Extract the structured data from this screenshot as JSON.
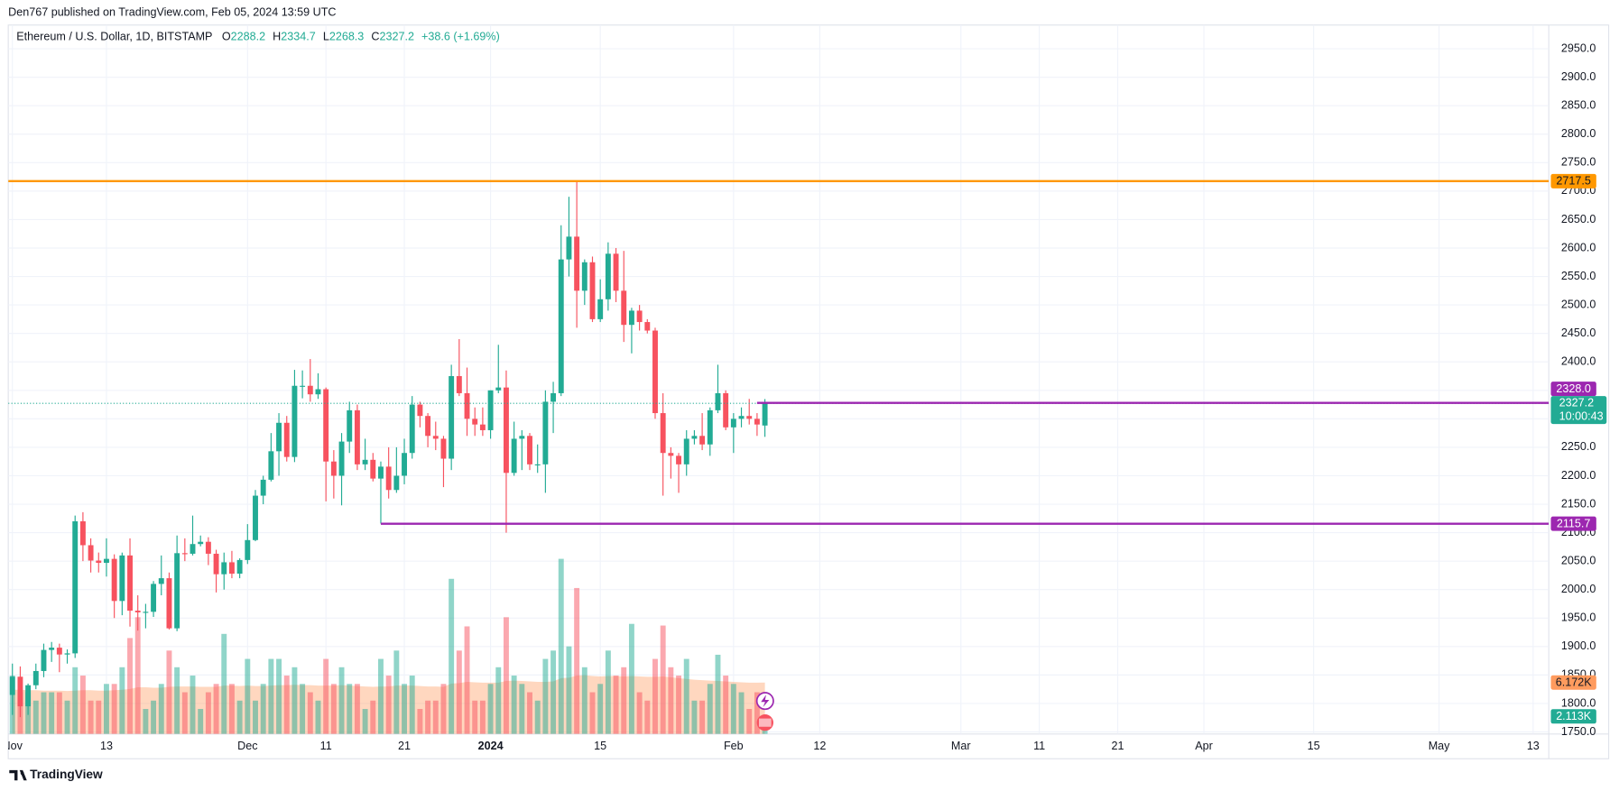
{
  "header": "Den767 published on TradingView.com, Feb 05, 2024 13:59 UTC",
  "footer": "TradingView",
  "chart_data": {
    "type": "candlestick",
    "title": "Ethereum / U.S. Dollar, 1D, BITSTAMP",
    "legend_letters": [
      "O",
      "H",
      "L",
      "C"
    ],
    "change": "+38.6 (+1.69%)",
    "countdown": "10:00:43",
    "up_color": "#22ab94",
    "down_color": "#f7525f",
    "x": [
      "2023-11-01",
      "2023-11-02",
      "2023-11-03",
      "2023-11-04",
      "2023-11-05",
      "2023-11-06",
      "2023-11-07",
      "2023-11-08",
      "2023-11-09",
      "2023-11-10",
      "2023-11-11",
      "2023-11-12",
      "2023-11-13",
      "2023-11-14",
      "2023-11-15",
      "2023-11-16",
      "2023-11-17",
      "2023-11-18",
      "2023-11-19",
      "2023-11-20",
      "2023-11-21",
      "2023-11-22",
      "2023-11-23",
      "2023-11-24",
      "2023-11-25",
      "2023-11-26",
      "2023-11-27",
      "2023-11-28",
      "2023-11-29",
      "2023-11-30",
      "2023-12-01",
      "2023-12-02",
      "2023-12-03",
      "2023-12-04",
      "2023-12-05",
      "2023-12-06",
      "2023-12-07",
      "2023-12-08",
      "2023-12-09",
      "2023-12-10",
      "2023-12-11",
      "2023-12-12",
      "2023-12-13",
      "2023-12-14",
      "2023-12-15",
      "2023-12-16",
      "2023-12-17",
      "2023-12-18",
      "2023-12-19",
      "2023-12-20",
      "2023-12-21",
      "2023-12-22",
      "2023-12-23",
      "2023-12-24",
      "2023-12-25",
      "2023-12-26",
      "2023-12-27",
      "2023-12-28",
      "2023-12-29",
      "2023-12-30",
      "2023-12-31",
      "2024-01-01",
      "2024-01-02",
      "2024-01-03",
      "2024-01-04",
      "2024-01-05",
      "2024-01-06",
      "2024-01-07",
      "2024-01-08",
      "2024-01-09",
      "2024-01-10",
      "2024-01-11",
      "2024-01-12",
      "2024-01-13",
      "2024-01-14",
      "2024-01-15",
      "2024-01-16",
      "2024-01-17",
      "2024-01-18",
      "2024-01-19",
      "2024-01-20",
      "2024-01-21",
      "2024-01-22",
      "2024-01-23",
      "2024-01-24",
      "2024-01-25",
      "2024-01-26",
      "2024-01-27",
      "2024-01-28",
      "2024-01-29",
      "2024-01-30",
      "2024-01-31",
      "2024-02-01",
      "2024-02-02",
      "2024-02-03",
      "2024-02-04",
      "2024-02-05"
    ],
    "open": [
      1815,
      1847,
      1795,
      1832,
      1857,
      1894,
      1898,
      1886,
      1888,
      2120,
      2078,
      2051,
      2047,
      2054,
      1980,
      2060,
      1963,
      1960,
      1961,
      2010,
      2020,
      1932,
      2064,
      2063,
      2080,
      2084,
      2063,
      2027,
      2048,
      2028,
      2052,
      2087,
      2165,
      2193,
      2243,
      2293,
      2233,
      2358,
      2358,
      2343,
      2352,
      2225,
      2200,
      2260,
      2315,
      2220,
      2228,
      2195,
      2216,
      2175,
      2200,
      2240,
      2325,
      2305,
      2270,
      2265,
      2230,
      2375,
      2345,
      2300,
      2290,
      2280,
      2350,
      2355,
      2205,
      2265,
      2270,
      2220,
      2220,
      2330,
      2345,
      2580,
      2620,
      2525,
      2575,
      2475,
      2510,
      2590,
      2525,
      2465,
      2490,
      2470,
      2455,
      2310,
      2240,
      2235,
      2220,
      2265,
      2270,
      2255,
      2315,
      2345,
      2285,
      2300,
      2305,
      2300,
      2288.2
    ],
    "high": [
      1870,
      1865,
      1835,
      1870,
      1905,
      1908,
      1905,
      1895,
      2130,
      2136,
      2090,
      2065,
      2090,
      2062,
      2065,
      2090,
      1990,
      1975,
      2015,
      2060,
      2030,
      2095,
      2090,
      2130,
      2095,
      2092,
      2070,
      2065,
      2068,
      2055,
      2115,
      2175,
      2200,
      2275,
      2310,
      2305,
      2386,
      2385,
      2405,
      2380,
      2355,
      2245,
      2275,
      2330,
      2325,
      2265,
      2240,
      2225,
      2250,
      2250,
      2265,
      2340,
      2330,
      2310,
      2295,
      2270,
      2395,
      2440,
      2390,
      2320,
      2320,
      2350,
      2430,
      2385,
      2295,
      2280,
      2275,
      2255,
      2350,
      2365,
      2640,
      2690,
      2717.5,
      2580,
      2585,
      2545,
      2610,
      2600,
      2595,
      2495,
      2500,
      2475,
      2460,
      2345,
      2250,
      2240,
      2280,
      2280,
      2310,
      2320,
      2395,
      2350,
      2310,
      2320,
      2335,
      2310,
      2334.7
    ],
    "low": [
      1780,
      1776,
      1780,
      1825,
      1846,
      1873,
      1855,
      1870,
      1880,
      2050,
      2030,
      2030,
      2023,
      1950,
      1955,
      1935,
      1928,
      1932,
      1952,
      1990,
      1930,
      1927,
      2050,
      2060,
      2076,
      2043,
      1995,
      2000,
      2020,
      2020,
      2045,
      2085,
      2150,
      2190,
      2200,
      2225,
      2224,
      2336,
      2330,
      2335,
      2155,
      2160,
      2148,
      2240,
      2210,
      2210,
      2190,
      2116,
      2160,
      2170,
      2185,
      2230,
      2285,
      2250,
      2245,
      2180,
      2210,
      2340,
      2270,
      2270,
      2270,
      2265,
      2345,
      2100,
      2200,
      2210,
      2210,
      2205,
      2170,
      2275,
      2340,
      2550,
      2460,
      2500,
      2470,
      2470,
      2490,
      2505,
      2435,
      2415,
      2455,
      2450,
      2300,
      2165,
      2195,
      2170,
      2200,
      2255,
      2245,
      2235,
      2310,
      2280,
      2240,
      2285,
      2290,
      2270,
      2268.3
    ],
    "close": [
      1847,
      1795,
      1832,
      1857,
      1894,
      1898,
      1886,
      1888,
      2120,
      2078,
      2051,
      2047,
      2054,
      1980,
      2060,
      1963,
      1960,
      1961,
      2010,
      2020,
      1932,
      2064,
      2063,
      2080,
      2084,
      2063,
      2027,
      2048,
      2028,
      2052,
      2087,
      2165,
      2193,
      2243,
      2293,
      2233,
      2358,
      2358,
      2343,
      2352,
      2225,
      2200,
      2260,
      2315,
      2220,
      2228,
      2195,
      2216,
      2175,
      2200,
      2240,
      2325,
      2305,
      2270,
      2265,
      2230,
      2375,
      2345,
      2300,
      2290,
      2280,
      2350,
      2355,
      2205,
      2265,
      2270,
      2220,
      2220,
      2330,
      2345,
      2580,
      2620,
      2525,
      2575,
      2475,
      2510,
      2590,
      2525,
      2465,
      2490,
      2470,
      2455,
      2310,
      2240,
      2235,
      2220,
      2265,
      2270,
      2255,
      2315,
      2345,
      2285,
      2300,
      2305,
      2300,
      2290,
      2327.2
    ],
    "volume": {
      "ylim": [
        0,
        85000
      ],
      "values": [
        7000,
        5000,
        5000,
        4000,
        5000,
        5000,
        5000,
        4000,
        8000,
        7000,
        4000,
        4000,
        6000,
        6000,
        8000,
        11500,
        14000,
        3000,
        4000,
        6000,
        10000,
        8000,
        5000,
        7000,
        3000,
        5000,
        6000,
        12000,
        6000,
        4000,
        9000,
        4000,
        6000,
        9000,
        9000,
        7000,
        8000,
        6000,
        5000,
        4000,
        9000,
        6000,
        8000,
        6000,
        6000,
        3000,
        4000,
        9000,
        7000,
        10000,
        6000,
        7000,
        3000,
        4000,
        4000,
        6000,
        18600,
        10000,
        12900,
        4000,
        4000,
        6000,
        8000,
        14000,
        7000,
        6000,
        5000,
        4000,
        9000,
        10000,
        21000,
        10500,
        17500,
        8000,
        5000,
        6000,
        10000,
        7000,
        8000,
        13200,
        5000,
        4000,
        9000,
        13000,
        8000,
        7000,
        9000,
        4000,
        4000,
        6000,
        9500,
        7000,
        6000,
        5000,
        3000,
        5000,
        2113
      ],
      "last_label": "2.113K"
    },
    "volume_ma": {
      "color": "#ff9b5e",
      "values": [
        5300,
        5300,
        5250,
        5250,
        5200,
        5200,
        5200,
        5150,
        5200,
        5250,
        5250,
        5200,
        5200,
        5250,
        5300,
        5400,
        5600,
        5600,
        5550,
        5550,
        5650,
        5700,
        5700,
        5700,
        5650,
        5650,
        5650,
        5800,
        5800,
        5750,
        5800,
        5750,
        5750,
        5800,
        5850,
        5850,
        5900,
        5850,
        5850,
        5800,
        5800,
        5800,
        5850,
        5800,
        5750,
        5700,
        5650,
        5700,
        5700,
        5800,
        5800,
        5800,
        5750,
        5700,
        5700,
        5650,
        6050,
        6100,
        6250,
        6200,
        6150,
        6150,
        6150,
        6350,
        6400,
        6350,
        6300,
        6250,
        6250,
        6300,
        6700,
        6750,
        7000,
        7050,
        6950,
        6900,
        6950,
        6950,
        6900,
        6950,
        6900,
        6850,
        6850,
        6900,
        6800,
        6700,
        6600,
        6500,
        6450,
        6400,
        6350,
        6300,
        6250,
        6200,
        6150,
        6150,
        6172
      ],
      "last_label": "6.172K"
    },
    "hlines": [
      {
        "value": 2717.5,
        "color": "#ff9800",
        "text_color": "#131722"
      },
      {
        "value": 2328,
        "label": "2328.0",
        "color": "#9c27b0",
        "text_color": "#ffffff",
        "from": "2024-02-04"
      },
      {
        "value": 2115.7,
        "color": "#9c27b0",
        "text_color": "#ffffff",
        "from": "2023-12-18"
      }
    ],
    "xlim": [
      "2023-11-01",
      "2024-05-15"
    ],
    "xticks": [
      {
        "value": "2023-11-01",
        "label": "Nov"
      },
      {
        "value": "2023-11-13",
        "label": "13"
      },
      {
        "value": "2023-12-01",
        "label": "Dec"
      },
      {
        "value": "2023-12-11",
        "label": "11"
      },
      {
        "value": "2023-12-21",
        "label": "21"
      },
      {
        "value": "2024-01-01",
        "label": "2024"
      },
      {
        "value": "2024-01-15",
        "label": "15"
      },
      {
        "value": "2024-02-01",
        "label": "Feb"
      },
      {
        "value": "2024-02-12",
        "label": "12"
      },
      {
        "value": "2024-03-01",
        "label": "Mar"
      },
      {
        "value": "2024-03-11",
        "label": "11"
      },
      {
        "value": "2024-03-21",
        "label": "21"
      },
      {
        "value": "2024-04-01",
        "label": "Apr"
      },
      {
        "value": "2024-04-15",
        "label": "15"
      },
      {
        "value": "2024-05-01",
        "label": "May"
      },
      {
        "value": "2024-05-13",
        "label": "13"
      }
    ],
    "ylim": [
      1746.4,
      2991.7
    ],
    "yticks": [
      {
        "value": 1750,
        "label": "1750.0"
      },
      {
        "value": 1800,
        "label": "1800.0"
      },
      {
        "value": 1850,
        "label": "1850.0"
      },
      {
        "value": 1900,
        "label": "1900.0"
      },
      {
        "value": 1950,
        "label": "1950.0"
      },
      {
        "value": 2000,
        "label": "2000.0"
      },
      {
        "value": 2050,
        "label": "2050.0"
      },
      {
        "value": 2100,
        "label": "2100.0"
      },
      {
        "value": 2150,
        "label": "2150.0"
      },
      {
        "value": 2200,
        "label": "2200.0"
      },
      {
        "value": 2250,
        "label": "2250.0"
      },
      {
        "value": 2300,
        "label": "2300.0"
      },
      {
        "value": 2350,
        "label": "2350.0"
      },
      {
        "value": 2400,
        "label": "2400.0"
      },
      {
        "value": 2450,
        "label": "2450.0"
      },
      {
        "value": 2500,
        "label": "2500.0"
      },
      {
        "value": 2550,
        "label": "2550.0"
      },
      {
        "value": 2600,
        "label": "2600.0"
      },
      {
        "value": 2650,
        "label": "2650.0"
      },
      {
        "value": 2700,
        "label": "2700.0"
      },
      {
        "value": 2750,
        "label": "2750.0"
      },
      {
        "value": 2800,
        "label": "2800.0"
      },
      {
        "value": 2850,
        "label": "2850.0"
      },
      {
        "value": 2900,
        "label": "2900.0"
      },
      {
        "value": 2950,
        "label": "2950.0"
      }
    ],
    "grid": true
  }
}
